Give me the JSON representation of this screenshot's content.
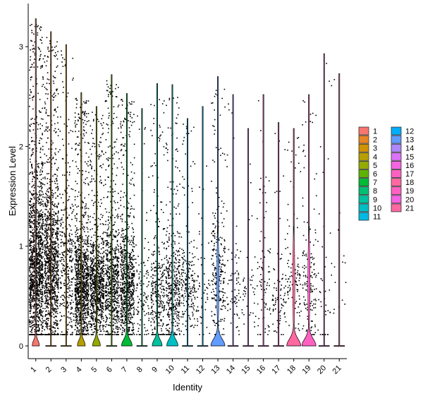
{
  "chart_data": {
    "type": "violin",
    "xlabel": "Identity",
    "ylabel": "Expression Level",
    "ylim": [
      -0.15,
      3.4
    ],
    "y_ticks": [
      0,
      1,
      2,
      3
    ],
    "y_tick_labels": [
      "0",
      "1",
      "2",
      "3"
    ],
    "categories": [
      "1",
      "2",
      "3",
      "4",
      "5",
      "6",
      "7",
      "8",
      "9",
      "10",
      "11",
      "12",
      "13",
      "14",
      "15",
      "16",
      "17",
      "18",
      "19",
      "20",
      "21"
    ],
    "legend": {
      "position": "right",
      "columns": 2,
      "entries": [
        "1",
        "2",
        "3",
        "4",
        "5",
        "6",
        "7",
        "8",
        "9",
        "10",
        "11",
        "12",
        "13",
        "14",
        "15",
        "16",
        "17",
        "18",
        "19",
        "20",
        "21"
      ]
    },
    "colors": [
      "#F8766D",
      "#E88526",
      "#D39200",
      "#B79F00",
      "#93AA00",
      "#5EB300",
      "#00BA38",
      "#00BF74",
      "#00C19F",
      "#00BFC4",
      "#00B9E3",
      "#00ADFA",
      "#619CFF",
      "#AE87FF",
      "#DB72FB",
      "#F564E3",
      "#FF61C3",
      "#FF68A1",
      "#FF61C3",
      "#F564E3",
      "#FF68A1"
    ],
    "series": [
      {
        "group": "1",
        "max": 3.28,
        "point_density": 1.0,
        "upper_mode": 0.75,
        "base_bulb": 0.5
      },
      {
        "group": "2",
        "max": 3.15,
        "point_density": 0.8,
        "upper_mode": 0.8,
        "base_bulb": 0.0
      },
      {
        "group": "3",
        "max": 3.02,
        "point_density": 0.25,
        "upper_mode": 0.7,
        "base_bulb": 0.0
      },
      {
        "group": "4",
        "max": 2.54,
        "point_density": 0.75,
        "upper_mode": 0.6,
        "base_bulb": 0.55
      },
      {
        "group": "5",
        "max": 2.4,
        "point_density": 0.6,
        "upper_mode": 0.6,
        "base_bulb": 0.55
      },
      {
        "group": "6",
        "max": 2.72,
        "point_density": 0.5,
        "upper_mode": 0.6,
        "base_bulb": 0.0
      },
      {
        "group": "7",
        "max": 2.53,
        "point_density": 0.55,
        "upper_mode": 0.6,
        "base_bulb": 0.75
      },
      {
        "group": "8",
        "max": 2.38,
        "point_density": 0.08,
        "upper_mode": 0.5,
        "base_bulb": 0.0
      },
      {
        "group": "9",
        "max": 2.63,
        "point_density": 0.22,
        "upper_mode": 0.5,
        "base_bulb": 0.7
      },
      {
        "group": "10",
        "max": 2.62,
        "point_density": 0.3,
        "upper_mode": 0.55,
        "base_bulb": 0.8
      },
      {
        "group": "11",
        "max": 2.28,
        "point_density": 0.15,
        "upper_mode": 0.6,
        "base_bulb": 0.0
      },
      {
        "group": "12",
        "max": 2.4,
        "point_density": 0.04,
        "upper_mode": 0.5,
        "base_bulb": 0.0
      },
      {
        "group": "13",
        "max": 2.7,
        "point_density": 0.18,
        "upper_mode": 0.7,
        "base_bulb": 1.0
      },
      {
        "group": "14",
        "max": 2.52,
        "point_density": 0.05,
        "upper_mode": 0.5,
        "base_bulb": 0.0
      },
      {
        "group": "15",
        "max": 2.18,
        "point_density": 0.03,
        "upper_mode": 0.5,
        "base_bulb": 0.0
      },
      {
        "group": "16",
        "max": 2.52,
        "point_density": 0.06,
        "upper_mode": 0.5,
        "base_bulb": 0.0
      },
      {
        "group": "17",
        "max": 2.24,
        "point_density": 0.06,
        "upper_mode": 0.5,
        "base_bulb": 0.0
      },
      {
        "group": "18",
        "max": 2.18,
        "point_density": 0.08,
        "upper_mode": 0.6,
        "base_bulb": 1.0
      },
      {
        "group": "19",
        "max": 2.52,
        "point_density": 0.1,
        "upper_mode": 0.6,
        "base_bulb": 1.0
      },
      {
        "group": "20",
        "max": 2.93,
        "point_density": 0.03,
        "upper_mode": 0.5,
        "base_bulb": 0.0
      },
      {
        "group": "21",
        "max": 2.73,
        "point_density": 0.01,
        "upper_mode": 0.5,
        "base_bulb": 0.0
      }
    ]
  }
}
